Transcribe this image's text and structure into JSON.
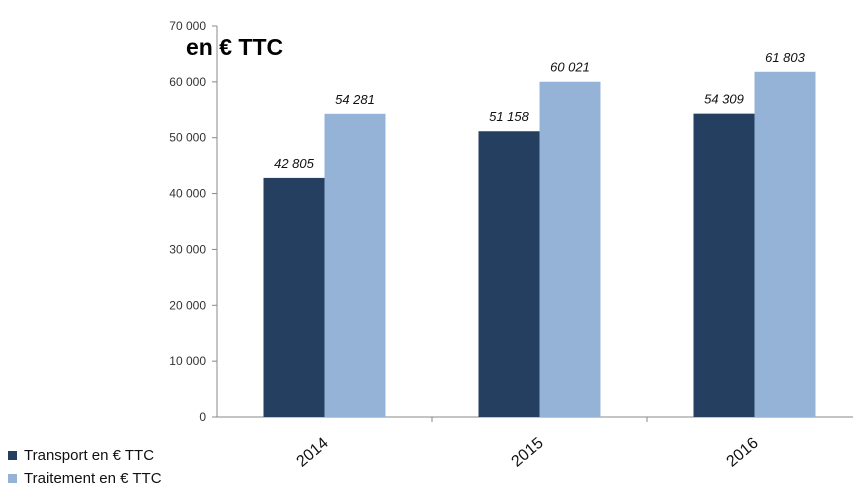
{
  "chart_data": {
    "type": "bar",
    "title": "en € TTC",
    "categories": [
      "2014",
      "2015",
      "2016"
    ],
    "series": [
      {
        "name": "Transport en € TTC",
        "values": [
          42805,
          51158,
          54309
        ],
        "labels": [
          "42 805",
          "51 158",
          "54 309"
        ],
        "color": "#243f60"
      },
      {
        "name": "Traitement en € TTC",
        "values": [
          54281,
          60021,
          61803
        ],
        "labels": [
          "54 281",
          "60 021",
          "61 803"
        ],
        "color": "#95b3d7"
      }
    ],
    "ylim": [
      0,
      70000
    ],
    "yticks": [
      0,
      10000,
      20000,
      30000,
      40000,
      50000,
      60000,
      70000
    ],
    "ytick_labels": [
      "0",
      "10 000",
      "20 000",
      "30 000",
      "40 000",
      "50 000",
      "60 000",
      "70 000"
    ],
    "grid": false,
    "legend_position": "bottom-left"
  }
}
